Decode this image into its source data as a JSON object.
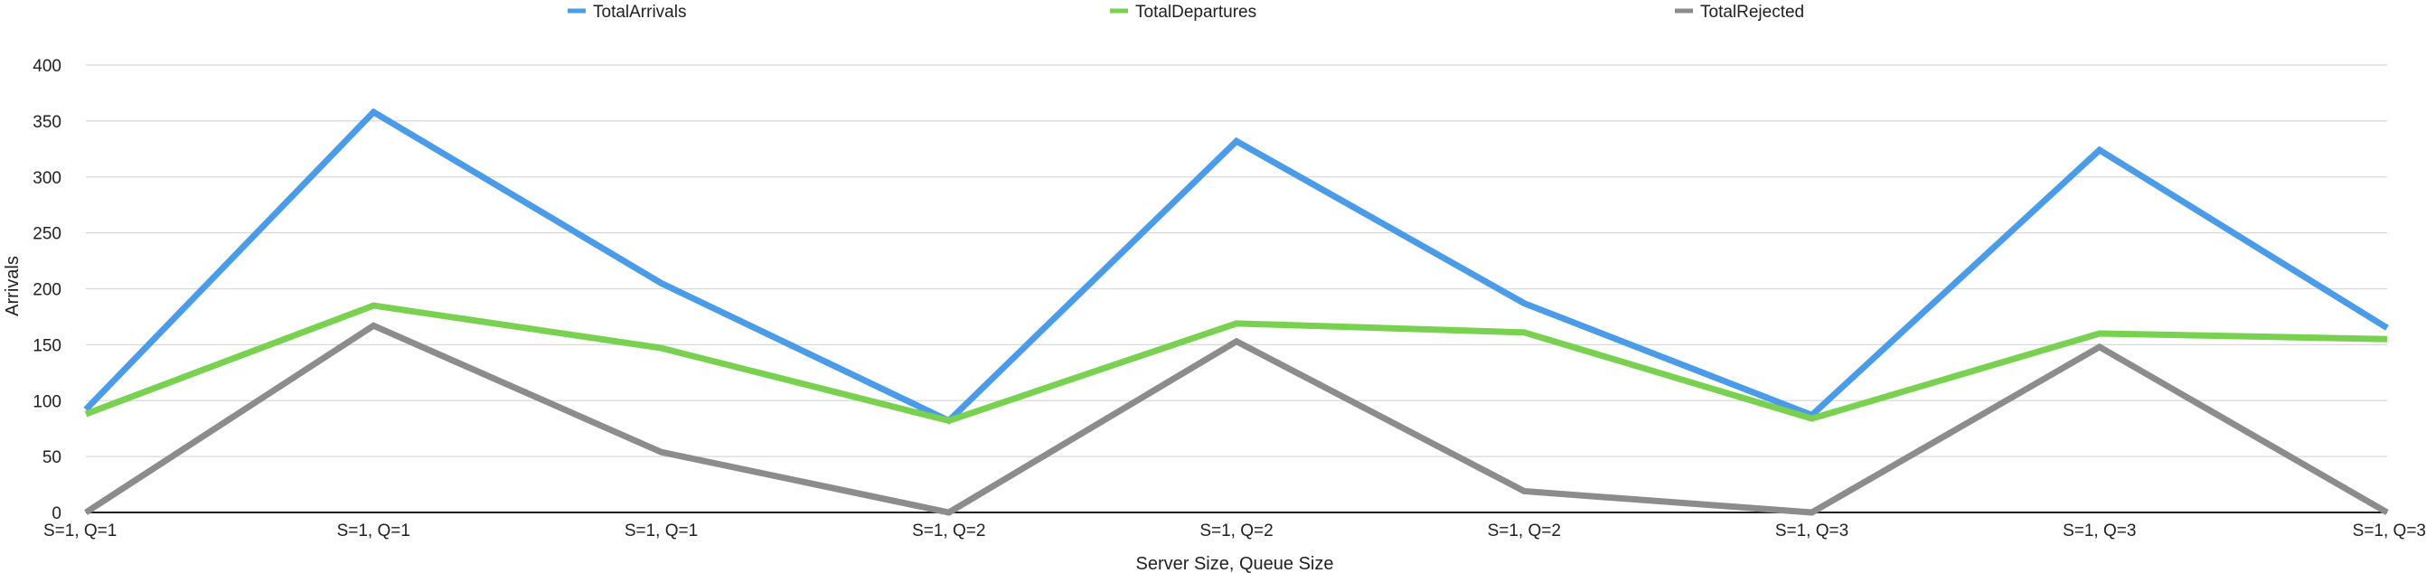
{
  "chart_data": {
    "type": "line",
    "categories": [
      "S=1, Q=1",
      "S=1, Q=1",
      "S=1, Q=1",
      "S=1, Q=2",
      "S=1, Q=2",
      "S=1, Q=2",
      "S=1, Q=3",
      "S=1, Q=3",
      "S=1, Q=3"
    ],
    "series": [
      {
        "name": "TotalArrivals",
        "color": "#4a9be8",
        "values": [
          92,
          358,
          205,
          82,
          332,
          187,
          87,
          324,
          165
        ]
      },
      {
        "name": "TotalDepartures",
        "color": "#78d14f",
        "values": [
          88,
          185,
          147,
          82,
          169,
          161,
          84,
          160,
          155
        ]
      },
      {
        "name": "TotalRejected",
        "color": "#8c8c8c",
        "values": [
          0,
          167,
          54,
          0,
          153,
          19,
          0,
          148,
          0
        ]
      }
    ],
    "xlabel": "Server Size, Queue Size",
    "ylabel": "Arrivals",
    "ylim": [
      0,
      400
    ],
    "yticks": [
      0,
      50,
      100,
      150,
      200,
      250,
      300,
      350,
      400
    ],
    "grid": true,
    "legend": "top"
  }
}
